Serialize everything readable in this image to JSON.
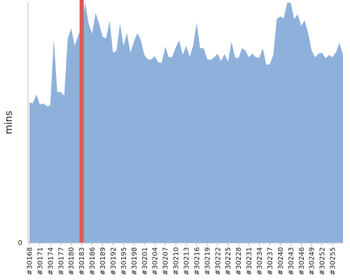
{
  "chart_data": {
    "type": "area",
    "ylabel": "mins",
    "xlabel": "",
    "title": "",
    "ylim": [
      0,
      100
    ],
    "y_ticks": [
      {
        "value": 0,
        "label": "0"
      }
    ],
    "x_tick_labels": [
      "#30168",
      "#30171",
      "#30174",
      "#30177",
      "#30180",
      "#30183",
      "#30186",
      "#30189",
      "#30192",
      "#30195",
      "#30198",
      "#30201",
      "#30204",
      "#30207",
      "#30210",
      "#30213",
      "#30216",
      "#30219",
      "#30222",
      "#30225",
      "#30228",
      "#30231",
      "#30234",
      "#30237",
      "#30240",
      "#30243",
      "#30246",
      "#30249",
      "#30252",
      "#30255"
    ],
    "x_start": 30168,
    "x_end": 30257,
    "values": [
      58.4,
      58.2,
      61.8,
      57.6,
      58.1,
      56.9,
      57.3,
      84.8,
      62.7,
      62.9,
      61.3,
      85.2,
      89.3,
      82.1,
      86.4,
      89.6,
      100,
      91.4,
      87.2,
      95.8,
      91.4,
      85.9,
      85.1,
      92.5,
      79.2,
      80.1,
      91.4,
      82.1,
      87.4,
      79.2,
      83.9,
      87.4,
      84.3,
      78.3,
      76.4,
      76.4,
      77.8,
      75.1,
      75.1,
      81.7,
      77.3,
      77.5,
      81.4,
      84.3,
      78.3,
      82.1,
      77.5,
      82.1,
      91.6,
      81.1,
      81.1,
      76.6,
      76.2,
      77.3,
      78.8,
      75.8,
      78.6,
      75.5,
      83.9,
      77.3,
      76.9,
      81.1,
      80.1,
      77.3,
      78.9,
      77.3,
      77.3,
      81.1,
      74.1,
      74.5,
      78.3,
      93.3,
      94.3,
      93.5,
      100,
      100,
      93.3,
      95.2,
      90.4,
      92.7,
      87.4,
      80.1,
      77.3,
      78.9,
      79.2,
      76.9,
      78.3,
      77.3,
      79.6,
      83.3,
      78.3
    ],
    "series": [
      {
        "name": "",
        "color": "#8eb1dc"
      }
    ],
    "highlight": {
      "x": 30183,
      "color": "#e05858"
    },
    "grid": false,
    "legend": "none"
  }
}
